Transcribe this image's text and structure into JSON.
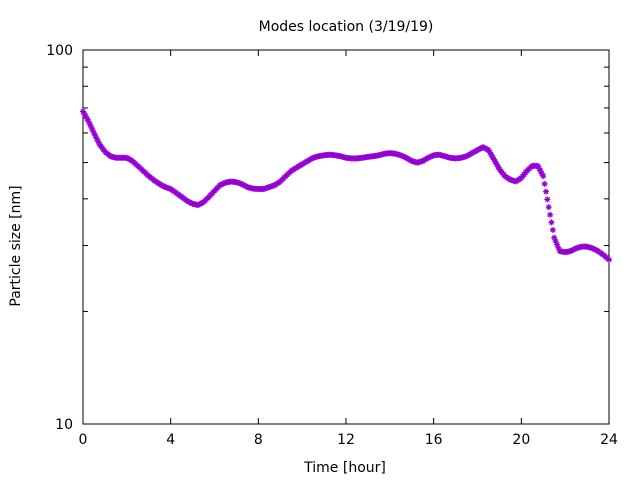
{
  "chart_data": {
    "type": "scatter",
    "title": "Modes location (3/19/19)",
    "xlabel": "Time [hour]",
    "ylabel": "Particle size [nm]",
    "xlim": [
      0,
      24
    ],
    "ylim": [
      10,
      100
    ],
    "yscale": "log",
    "xticks": [
      0,
      4,
      8,
      12,
      16,
      20,
      24
    ],
    "xtick_labels": [
      "0",
      "4",
      "8",
      "12",
      "16",
      "20",
      "24"
    ],
    "yticks": [
      10,
      100
    ],
    "ytick_labels": [
      "10",
      "100"
    ],
    "grid": false,
    "legend": "none",
    "marker": "asterisk",
    "color": "#9400d3",
    "x": [
      0.0,
      0.25,
      0.5,
      0.75,
      1.0,
      1.25,
      1.5,
      1.75,
      2.0,
      2.25,
      2.5,
      2.75,
      3.0,
      3.25,
      3.5,
      3.75,
      4.0,
      4.25,
      4.5,
      4.75,
      5.0,
      5.25,
      5.5,
      5.75,
      6.0,
      6.25,
      6.5,
      6.75,
      7.0,
      7.25,
      7.5,
      7.75,
      8.0,
      8.25,
      8.5,
      8.75,
      9.0,
      9.25,
      9.5,
      9.75,
      10.0,
      10.25,
      10.5,
      10.75,
      11.0,
      11.25,
      11.5,
      11.75,
      12.0,
      12.25,
      12.5,
      12.75,
      13.0,
      13.25,
      13.5,
      13.75,
      14.0,
      14.25,
      14.5,
      14.75,
      15.0,
      15.25,
      15.5,
      15.75,
      16.0,
      16.25,
      16.5,
      16.75,
      17.0,
      17.25,
      17.5,
      17.75,
      18.0,
      18.25,
      18.5,
      18.75,
      19.0,
      19.25,
      19.5,
      19.75,
      20.0,
      20.25,
      20.5,
      20.75,
      21.0,
      21.25,
      21.5,
      21.75,
      22.0,
      22.25,
      22.5,
      22.75,
      23.0,
      23.25,
      23.5,
      23.75,
      24.0
    ],
    "y": [
      68.5,
      64.5,
      60.0,
      56.0,
      53.5,
      52.0,
      51.5,
      51.5,
      51.5,
      50.5,
      49.0,
      47.5,
      46.0,
      44.8,
      43.8,
      43.0,
      42.5,
      41.5,
      40.5,
      39.5,
      38.8,
      38.5,
      39.2,
      40.5,
      42.0,
      43.5,
      44.2,
      44.5,
      44.3,
      43.8,
      43.0,
      42.6,
      42.5,
      42.5,
      43.0,
      43.5,
      44.5,
      46.0,
      47.5,
      48.5,
      49.5,
      50.5,
      51.5,
      52.0,
      52.3,
      52.5,
      52.3,
      52.0,
      51.5,
      51.3,
      51.3,
      51.5,
      51.8,
      52.0,
      52.3,
      52.8,
      53.0,
      52.8,
      52.3,
      51.5,
      50.5,
      50.0,
      50.5,
      51.5,
      52.3,
      52.5,
      52.0,
      51.5,
      51.3,
      51.5,
      52.0,
      53.0,
      54.0,
      55.0,
      54.0,
      51.0,
      48.0,
      46.0,
      45.0,
      44.5,
      45.5,
      47.5,
      49.0,
      49.0,
      46.0,
      38.0,
      31.5,
      29.0,
      28.8,
      29.0,
      29.5,
      29.8,
      29.8,
      29.5,
      29.0,
      28.3,
      27.5
    ]
  }
}
